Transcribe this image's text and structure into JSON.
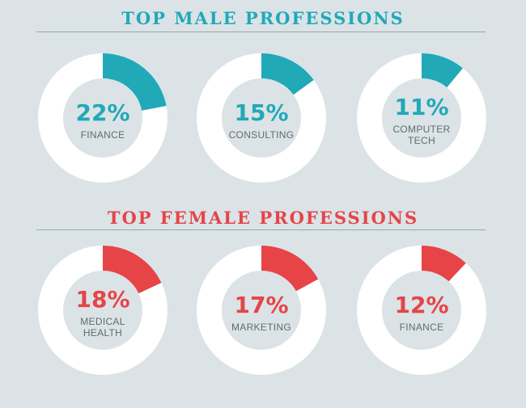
{
  "colors": {
    "background": "#dbe3e7",
    "ring": "#ffffff",
    "male_accent": "#21a9b8",
    "female_accent": "#e64447",
    "label": "#5f6a70"
  },
  "chart_data": [
    {
      "type": "pie",
      "title": "TOP MALE PROFESSIONS",
      "accent": "#21a9b8",
      "items": [
        {
          "value_label": "22%",
          "value": 22,
          "label": "FINANCE"
        },
        {
          "value_label": "15%",
          "value": 15,
          "label": "CONSULTING"
        },
        {
          "value_label": "11%",
          "value": 11,
          "label": "COMPUTER\nTECH"
        }
      ]
    },
    {
      "type": "pie",
      "title": "TOP FEMALE PROFESSIONS",
      "accent": "#e64447",
      "items": [
        {
          "value_label": "18%",
          "value": 18,
          "label": "MEDICAL\nHEALTH"
        },
        {
          "value_label": "17%",
          "value": 17,
          "label": "MARKETING"
        },
        {
          "value_label": "12%",
          "value": 12,
          "label": "FINANCE"
        }
      ]
    }
  ]
}
